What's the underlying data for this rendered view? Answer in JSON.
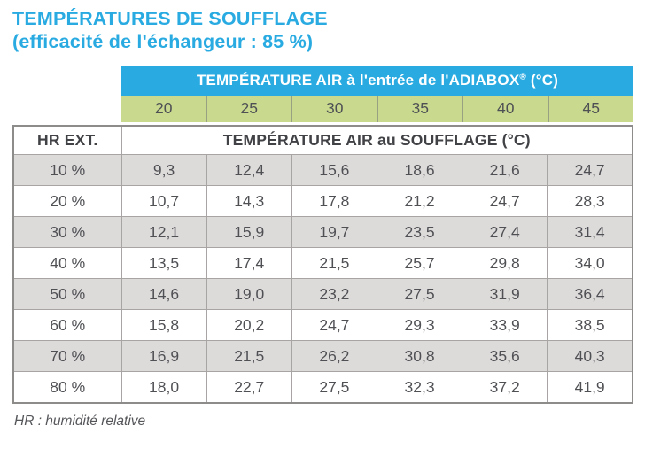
{
  "title": {
    "line1": "TEMPÉRATURES DE SOUFFLAGE",
    "line2": "(efficacité de l'échangeur : 85 %)"
  },
  "table": {
    "inlet_header": {
      "text": "TEMPÉRATURE AIR à l'entrée de l'ADIABOX",
      "sup": "®",
      "suffix": " (°C)"
    },
    "inlet_temps": [
      "20",
      "25",
      "30",
      "35",
      "40",
      "45"
    ],
    "hr_ext_label": "HR EXT.",
    "souffle_header": "TEMPÉRATURE AIR au SOUFFLAGE (°C)",
    "rows": [
      {
        "hr": "10 %",
        "values": [
          "9,3",
          "12,4",
          "15,6",
          "18,6",
          "21,6",
          "24,7"
        ]
      },
      {
        "hr": "20 %",
        "values": [
          "10,7",
          "14,3",
          "17,8",
          "21,2",
          "24,7",
          "28,3"
        ]
      },
      {
        "hr": "30 %",
        "values": [
          "12,1",
          "15,9",
          "19,7",
          "23,5",
          "27,4",
          "31,4"
        ]
      },
      {
        "hr": "40 %",
        "values": [
          "13,5",
          "17,4",
          "21,5",
          "25,7",
          "29,8",
          "34,0"
        ]
      },
      {
        "hr": "50 %",
        "values": [
          "14,6",
          "19,0",
          "23,2",
          "27,5",
          "31,9",
          "36,4"
        ]
      },
      {
        "hr": "60 %",
        "values": [
          "15,8",
          "20,2",
          "24,7",
          "29,3",
          "33,9",
          "38,5"
        ]
      },
      {
        "hr": "70 %",
        "values": [
          "16,9",
          "21,5",
          "26,2",
          "30,8",
          "35,6",
          "40,3"
        ]
      },
      {
        "hr": "80 %",
        "values": [
          "18,0",
          "22,7",
          "27,5",
          "32,3",
          "37,2",
          "41,9"
        ]
      }
    ]
  },
  "footnote": "HR : humidité relative",
  "colors": {
    "accent_cyan": "#29ABE2",
    "header_green": "#C9DA8F",
    "row_gray": "#DDDADA",
    "text_dark": "#4F5054"
  }
}
